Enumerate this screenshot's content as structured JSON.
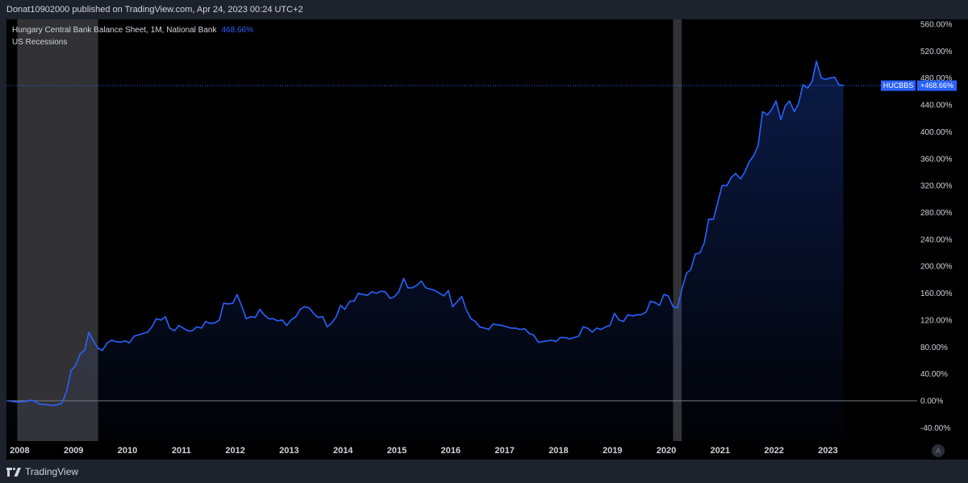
{
  "header": {
    "published_text": "Donat10902000 published on TradingView.com, Apr 24, 2023 00:24 UTC+2"
  },
  "legend": {
    "series_title": "Hungary Central Bank Balance Sheet, 1M, National Bank",
    "series_value": "468.66%",
    "recession_label": "US Recessions"
  },
  "price_label": {
    "symbol": "HUCBBS",
    "value": "+468.66%"
  },
  "footer": {
    "brand": "TradingView",
    "auto_button": "A"
  },
  "colors": {
    "background": "#000000",
    "frame": "#1e222d",
    "line": "#2962ff",
    "recession": "#3b3b3d",
    "text": "#d1d4dc",
    "zero_line": "#787b86"
  },
  "chart_data": {
    "type": "area",
    "title": "Hungary Central Bank Balance Sheet, 1M, National Bank",
    "series_name": "HUCBBS",
    "y_unit": "% change",
    "ylim": [
      -60,
      570
    ],
    "y_ticks": [
      "560.00%",
      "520.00%",
      "480.00%",
      "440.00%",
      "400.00%",
      "360.00%",
      "320.00%",
      "280.00%",
      "240.00%",
      "200.00%",
      "160.00%",
      "120.00%",
      "80.00%",
      "40.00%",
      "0.00%",
      "-40.00%"
    ],
    "x_ticks": [
      "2008",
      "2009",
      "2010",
      "2011",
      "2012",
      "2013",
      "2014",
      "2015",
      "2016",
      "2017",
      "2018",
      "2019",
      "2020",
      "2021",
      "2022",
      "2023"
    ],
    "x_range": [
      2007.8,
      2024.7
    ],
    "recessions": [
      {
        "start": 2008.0,
        "end": 2009.5
      },
      {
        "start": 2020.17,
        "end": 2020.33
      }
    ],
    "last_value": 468.66,
    "points": [
      {
        "x": 2007.83,
        "y": 0
      },
      {
        "x": 2008.0,
        "y": -2
      },
      {
        "x": 2008.17,
        "y": -1
      },
      {
        "x": 2008.25,
        "y": 1
      },
      {
        "x": 2008.33,
        "y": -1
      },
      {
        "x": 2008.42,
        "y": -5
      },
      {
        "x": 2008.58,
        "y": -6
      },
      {
        "x": 2008.67,
        "y": -7
      },
      {
        "x": 2008.83,
        "y": -4
      },
      {
        "x": 2008.92,
        "y": 15
      },
      {
        "x": 2009.0,
        "y": 45
      },
      {
        "x": 2009.08,
        "y": 52
      },
      {
        "x": 2009.17,
        "y": 70
      },
      {
        "x": 2009.25,
        "y": 75
      },
      {
        "x": 2009.33,
        "y": 102
      },
      {
        "x": 2009.42,
        "y": 88
      },
      {
        "x": 2009.5,
        "y": 78
      },
      {
        "x": 2009.58,
        "y": 75
      },
      {
        "x": 2009.67,
        "y": 86
      },
      {
        "x": 2009.75,
        "y": 90
      },
      {
        "x": 2009.83,
        "y": 88
      },
      {
        "x": 2009.92,
        "y": 87
      },
      {
        "x": 2010.0,
        "y": 89
      },
      {
        "x": 2010.08,
        "y": 86
      },
      {
        "x": 2010.17,
        "y": 96
      },
      {
        "x": 2010.25,
        "y": 98
      },
      {
        "x": 2010.33,
        "y": 100
      },
      {
        "x": 2010.42,
        "y": 102
      },
      {
        "x": 2010.5,
        "y": 110
      },
      {
        "x": 2010.58,
        "y": 122
      },
      {
        "x": 2010.67,
        "y": 120
      },
      {
        "x": 2010.75,
        "y": 125
      },
      {
        "x": 2010.83,
        "y": 108
      },
      {
        "x": 2010.92,
        "y": 104
      },
      {
        "x": 2011.0,
        "y": 112
      },
      {
        "x": 2011.08,
        "y": 108
      },
      {
        "x": 2011.17,
        "y": 104
      },
      {
        "x": 2011.25,
        "y": 104
      },
      {
        "x": 2011.33,
        "y": 110
      },
      {
        "x": 2011.42,
        "y": 108
      },
      {
        "x": 2011.5,
        "y": 118
      },
      {
        "x": 2011.58,
        "y": 115
      },
      {
        "x": 2011.67,
        "y": 116
      },
      {
        "x": 2011.75,
        "y": 120
      },
      {
        "x": 2011.83,
        "y": 145
      },
      {
        "x": 2011.92,
        "y": 144
      },
      {
        "x": 2012.0,
        "y": 145
      },
      {
        "x": 2012.08,
        "y": 158
      },
      {
        "x": 2012.17,
        "y": 140
      },
      {
        "x": 2012.25,
        "y": 122
      },
      {
        "x": 2012.33,
        "y": 125
      },
      {
        "x": 2012.42,
        "y": 124
      },
      {
        "x": 2012.5,
        "y": 136
      },
      {
        "x": 2012.58,
        "y": 128
      },
      {
        "x": 2012.67,
        "y": 122
      },
      {
        "x": 2012.75,
        "y": 122
      },
      {
        "x": 2012.83,
        "y": 119
      },
      {
        "x": 2012.92,
        "y": 120
      },
      {
        "x": 2013.0,
        "y": 112
      },
      {
        "x": 2013.08,
        "y": 120
      },
      {
        "x": 2013.17,
        "y": 125
      },
      {
        "x": 2013.25,
        "y": 136
      },
      {
        "x": 2013.33,
        "y": 140
      },
      {
        "x": 2013.42,
        "y": 138
      },
      {
        "x": 2013.5,
        "y": 130
      },
      {
        "x": 2013.58,
        "y": 124
      },
      {
        "x": 2013.67,
        "y": 125
      },
      {
        "x": 2013.75,
        "y": 110
      },
      {
        "x": 2013.83,
        "y": 115
      },
      {
        "x": 2013.92,
        "y": 125
      },
      {
        "x": 2014.0,
        "y": 142
      },
      {
        "x": 2014.08,
        "y": 136
      },
      {
        "x": 2014.17,
        "y": 148
      },
      {
        "x": 2014.25,
        "y": 148
      },
      {
        "x": 2014.33,
        "y": 160
      },
      {
        "x": 2014.42,
        "y": 158
      },
      {
        "x": 2014.5,
        "y": 157
      },
      {
        "x": 2014.58,
        "y": 162
      },
      {
        "x": 2014.67,
        "y": 160
      },
      {
        "x": 2014.75,
        "y": 163
      },
      {
        "x": 2014.83,
        "y": 162
      },
      {
        "x": 2014.92,
        "y": 152
      },
      {
        "x": 2015.0,
        "y": 155
      },
      {
        "x": 2015.08,
        "y": 162
      },
      {
        "x": 2015.17,
        "y": 182
      },
      {
        "x": 2015.25,
        "y": 168
      },
      {
        "x": 2015.33,
        "y": 168
      },
      {
        "x": 2015.42,
        "y": 172
      },
      {
        "x": 2015.5,
        "y": 178
      },
      {
        "x": 2015.58,
        "y": 168
      },
      {
        "x": 2015.67,
        "y": 166
      },
      {
        "x": 2015.75,
        "y": 164
      },
      {
        "x": 2015.83,
        "y": 160
      },
      {
        "x": 2015.92,
        "y": 156
      },
      {
        "x": 2016.0,
        "y": 164
      },
      {
        "x": 2016.08,
        "y": 140
      },
      {
        "x": 2016.17,
        "y": 148
      },
      {
        "x": 2016.25,
        "y": 155
      },
      {
        "x": 2016.33,
        "y": 136
      },
      {
        "x": 2016.42,
        "y": 122
      },
      {
        "x": 2016.5,
        "y": 118
      },
      {
        "x": 2016.58,
        "y": 110
      },
      {
        "x": 2016.67,
        "y": 108
      },
      {
        "x": 2016.75,
        "y": 106
      },
      {
        "x": 2016.83,
        "y": 114
      },
      {
        "x": 2016.92,
        "y": 113
      },
      {
        "x": 2017.0,
        "y": 112
      },
      {
        "x": 2017.08,
        "y": 110
      },
      {
        "x": 2017.17,
        "y": 108
      },
      {
        "x": 2017.25,
        "y": 108
      },
      {
        "x": 2017.33,
        "y": 106
      },
      {
        "x": 2017.42,
        "y": 107
      },
      {
        "x": 2017.5,
        "y": 100
      },
      {
        "x": 2017.58,
        "y": 98
      },
      {
        "x": 2017.67,
        "y": 87
      },
      {
        "x": 2017.75,
        "y": 88
      },
      {
        "x": 2017.83,
        "y": 89
      },
      {
        "x": 2017.92,
        "y": 90
      },
      {
        "x": 2018.0,
        "y": 88
      },
      {
        "x": 2018.08,
        "y": 94
      },
      {
        "x": 2018.17,
        "y": 94
      },
      {
        "x": 2018.25,
        "y": 92
      },
      {
        "x": 2018.33,
        "y": 94
      },
      {
        "x": 2018.42,
        "y": 96
      },
      {
        "x": 2018.5,
        "y": 110
      },
      {
        "x": 2018.58,
        "y": 108
      },
      {
        "x": 2018.67,
        "y": 102
      },
      {
        "x": 2018.75,
        "y": 108
      },
      {
        "x": 2018.83,
        "y": 106
      },
      {
        "x": 2018.92,
        "y": 110
      },
      {
        "x": 2019.0,
        "y": 112
      },
      {
        "x": 2019.08,
        "y": 130
      },
      {
        "x": 2019.17,
        "y": 120
      },
      {
        "x": 2019.25,
        "y": 118
      },
      {
        "x": 2019.33,
        "y": 128
      },
      {
        "x": 2019.42,
        "y": 126
      },
      {
        "x": 2019.5,
        "y": 128
      },
      {
        "x": 2019.58,
        "y": 128
      },
      {
        "x": 2019.67,
        "y": 132
      },
      {
        "x": 2019.75,
        "y": 148
      },
      {
        "x": 2019.83,
        "y": 146
      },
      {
        "x": 2019.92,
        "y": 142
      },
      {
        "x": 2020.0,
        "y": 158
      },
      {
        "x": 2020.08,
        "y": 156
      },
      {
        "x": 2020.17,
        "y": 140
      },
      {
        "x": 2020.25,
        "y": 138
      },
      {
        "x": 2020.33,
        "y": 165
      },
      {
        "x": 2020.42,
        "y": 190
      },
      {
        "x": 2020.5,
        "y": 195
      },
      {
        "x": 2020.58,
        "y": 218
      },
      {
        "x": 2020.67,
        "y": 220
      },
      {
        "x": 2020.75,
        "y": 235
      },
      {
        "x": 2020.83,
        "y": 270
      },
      {
        "x": 2020.92,
        "y": 270
      },
      {
        "x": 2021.0,
        "y": 295
      },
      {
        "x": 2021.08,
        "y": 320
      },
      {
        "x": 2021.17,
        "y": 320
      },
      {
        "x": 2021.25,
        "y": 332
      },
      {
        "x": 2021.33,
        "y": 338
      },
      {
        "x": 2021.42,
        "y": 330
      },
      {
        "x": 2021.5,
        "y": 340
      },
      {
        "x": 2021.58,
        "y": 355
      },
      {
        "x": 2021.67,
        "y": 365
      },
      {
        "x": 2021.75,
        "y": 380
      },
      {
        "x": 2021.83,
        "y": 430
      },
      {
        "x": 2021.92,
        "y": 425
      },
      {
        "x": 2022.0,
        "y": 433
      },
      {
        "x": 2022.08,
        "y": 446
      },
      {
        "x": 2022.17,
        "y": 418
      },
      {
        "x": 2022.25,
        "y": 438
      },
      {
        "x": 2022.33,
        "y": 446
      },
      {
        "x": 2022.42,
        "y": 430
      },
      {
        "x": 2022.5,
        "y": 442
      },
      {
        "x": 2022.58,
        "y": 470
      },
      {
        "x": 2022.67,
        "y": 465
      },
      {
        "x": 2022.75,
        "y": 475
      },
      {
        "x": 2022.83,
        "y": 505
      },
      {
        "x": 2022.92,
        "y": 480
      },
      {
        "x": 2023.0,
        "y": 478
      },
      {
        "x": 2023.08,
        "y": 480
      },
      {
        "x": 2023.17,
        "y": 481
      },
      {
        "x": 2023.25,
        "y": 470
      },
      {
        "x": 2023.33,
        "y": 468.66
      }
    ]
  }
}
